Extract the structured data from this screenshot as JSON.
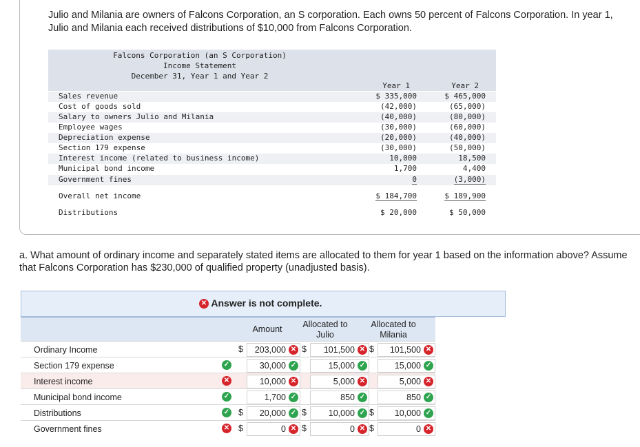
{
  "intro": "Julio and Milania are owners of Falcons Corporation, an S corporation. Each owns 50 percent of Falcons Corporation. In year 1, Julio and Milania each received distributions of $10,000 from Falcons Corporation.",
  "statement": {
    "title1": "Falcons Corporation (an S Corporation)",
    "title2": "Income Statement",
    "title3": "December 31, Year 1 and Year 2",
    "col1": "Year 1",
    "col2": "Year 2",
    "rows": [
      {
        "label": "Sales revenue",
        "y1": "$ 335,000",
        "y2": "$ 465,000"
      },
      {
        "label": "Cost of goods sold",
        "y1": "(42,000)",
        "y2": "(65,000)"
      },
      {
        "label": "Salary to owners Julio and Milania",
        "y1": "(40,000)",
        "y2": "(80,000)"
      },
      {
        "label": "Employee wages",
        "y1": "(30,000)",
        "y2": "(60,000)"
      },
      {
        "label": "Depreciation expense",
        "y1": "(20,000)",
        "y2": "(40,000)"
      },
      {
        "label": "Section 179 expense",
        "y1": "(30,000)",
        "y2": "(50,000)"
      },
      {
        "label": "Interest income (related to business income)",
        "y1": "10,000",
        "y2": "18,500"
      },
      {
        "label": "Municipal bond income",
        "y1": "1,700",
        "y2": "4,400"
      },
      {
        "label": "Government fines",
        "y1": "0",
        "y2": "(3,000)"
      },
      {
        "label": "Overall net income",
        "y1": "$ 184,700",
        "y2": "$ 189,900"
      },
      {
        "label": "Distributions",
        "y1": "$ 20,000",
        "y2": "$ 50,000"
      }
    ]
  },
  "question": "a. What amount of ordinary income and separately stated items are allocated to them for year 1 based on the information above? Assume that Falcons Corporation has $230,000 of qualified property (unadjusted basis).",
  "banner": "Answer is not complete.",
  "answer": {
    "h_amount": "Amount",
    "h_julio": "Allocated to Julio",
    "h_milania": "Allocated to Milania",
    "rows": [
      {
        "name": "Ordinary Income",
        "mark": "",
        "d1": "$",
        "a": "203,000",
        "am": "x",
        "d2": "$",
        "j": "101,500",
        "jm": "x",
        "d3": "$",
        "m": "101,500",
        "mm": "x"
      },
      {
        "name": "Section 179 expense",
        "mark": "c",
        "d1": "",
        "a": "30,000",
        "am": "c",
        "d2": "",
        "j": "15,000",
        "jm": "c",
        "d3": "",
        "m": "15,000",
        "mm": "c"
      },
      {
        "name": "Interest income",
        "mark": "x",
        "d1": "",
        "a": "10,000",
        "am": "x",
        "d2": "",
        "j": "5,000",
        "jm": "x",
        "d3": "",
        "m": "5,000",
        "mm": "x"
      },
      {
        "name": "Municipal bond income",
        "mark": "c",
        "d1": "",
        "a": "1,700",
        "am": "c",
        "d2": "",
        "j": "850",
        "jm": "c",
        "d3": "",
        "m": "850",
        "mm": "c"
      },
      {
        "name": "Distributions",
        "mark": "c",
        "d1": "$",
        "a": "20,000",
        "am": "c",
        "d2": "$",
        "j": "10,000",
        "jm": "c",
        "d3": "$",
        "m": "10,000",
        "mm": "c"
      },
      {
        "name": "Government fines",
        "mark": "x",
        "d1": "$",
        "a": "0",
        "am": "x",
        "d2": "$",
        "j": "0",
        "jm": "x",
        "d3": "$",
        "m": "0",
        "mm": "x"
      }
    ]
  }
}
